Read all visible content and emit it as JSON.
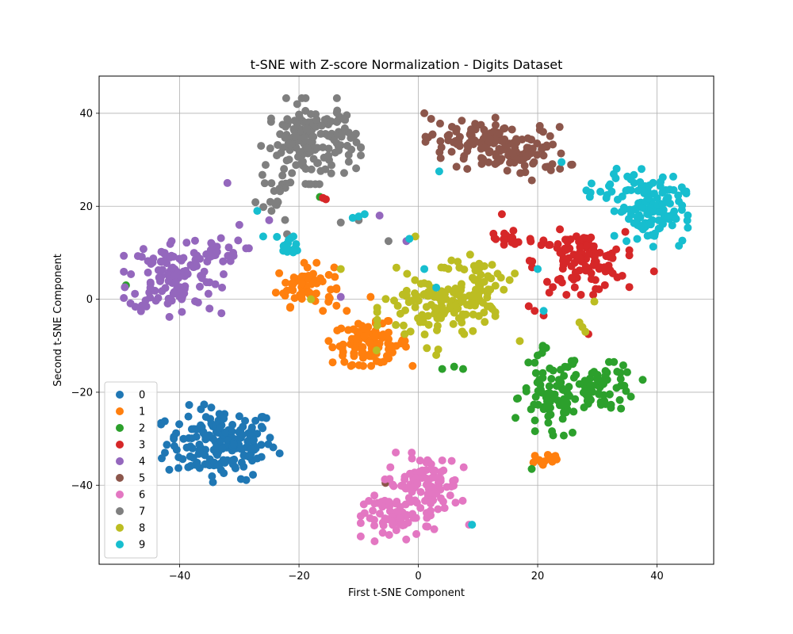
{
  "chart_data": {
    "type": "scatter",
    "title": "t-SNE with Z-score Normalization - Digits Dataset",
    "xlabel": "First t-SNE Component",
    "ylabel": "Second t-SNE Component",
    "xlim": [
      -53.5,
      49.5
    ],
    "ylim": [
      -57,
      48
    ],
    "xticks": [
      -40,
      -20,
      0,
      20,
      40
    ],
    "yticks": [
      -40,
      -20,
      0,
      20,
      40
    ],
    "tick_labels_x": [
      "−40",
      "−20",
      "0",
      "20",
      "40"
    ],
    "tick_labels_y": [
      "−40",
      "−20",
      "0",
      "20",
      "40"
    ],
    "grid": true,
    "legend_position": "lower-left",
    "series": [
      {
        "name": "0",
        "color": "#1f77b4",
        "clusters": [
          {
            "cx": -33,
            "cy": -31,
            "sx": 4.6,
            "sy": 3.8,
            "n": 180
          }
        ],
        "points": []
      },
      {
        "name": "1",
        "color": "#ff7f0e",
        "clusters": [
          {
            "cx": -19,
            "cy": 3,
            "sx": 2.4,
            "sy": 2.2,
            "n": 60
          },
          {
            "cx": -8,
            "cy": -9.5,
            "sx": 3.2,
            "sy": 2.2,
            "n": 95
          },
          {
            "cx": 21.5,
            "cy": -34.5,
            "sx": 1.4,
            "sy": 1.0,
            "n": 14
          }
        ],
        "points": [
          [
            -12,
            -2.5
          ],
          [
            -15,
            0.5
          ],
          [
            -8,
            0.5
          ],
          [
            -16,
            -2.5
          ]
        ]
      },
      {
        "name": "2",
        "color": "#2ca02c",
        "clusters": [
          {
            "cx": 22,
            "cy": -21,
            "sx": 2.6,
            "sy": 5.0,
            "n": 80
          },
          {
            "cx": 31,
            "cy": -19,
            "sx": 3.0,
            "sy": 2.5,
            "n": 70
          }
        ],
        "points": [
          [
            -49,
            3
          ],
          [
            -16.5,
            22
          ],
          [
            4,
            -15
          ],
          [
            6,
            -14.5
          ],
          [
            7.5,
            -15
          ],
          [
            19,
            -36.5
          ]
        ]
      },
      {
        "name": "3",
        "color": "#d62728",
        "clusters": [
          {
            "cx": 27,
            "cy": 8,
            "sx": 3.8,
            "sy": 3.2,
            "n": 110
          },
          {
            "cx": 15,
            "cy": 13,
            "sx": 2.2,
            "sy": 1.3,
            "n": 20
          }
        ],
        "points": [
          [
            -15.5,
            21.5
          ],
          [
            -16,
            21.8
          ],
          [
            14,
            18.3
          ],
          [
            18.5,
            -1.5
          ],
          [
            19.5,
            -2.5
          ],
          [
            28.5,
            -7.5
          ],
          [
            39.5,
            6
          ],
          [
            21,
            -3.5
          ]
        ]
      },
      {
        "name": "4",
        "color": "#9467bd",
        "clusters": [
          {
            "cx": -41,
            "cy": 5,
            "sx": 3.8,
            "sy": 4.0,
            "n": 120
          },
          {
            "cx": -35,
            "cy": 10.5,
            "sx": 3.0,
            "sy": 1.2,
            "n": 20
          }
        ],
        "points": [
          [
            -32,
            25
          ],
          [
            -30,
            16
          ],
          [
            -35,
            -2
          ],
          [
            -33,
            -3
          ],
          [
            -13,
            0.5
          ],
          [
            -6.5,
            18
          ],
          [
            -2,
            12.5
          ],
          [
            -25,
            17
          ]
        ]
      },
      {
        "name": "5",
        "color": "#8c564b",
        "clusters": [
          {
            "cx": 8,
            "cy": 34,
            "sx": 3.5,
            "sy": 2.5,
            "n": 70
          },
          {
            "cx": 17,
            "cy": 31.5,
            "sx": 4.0,
            "sy": 2.7,
            "n": 90
          }
        ],
        "points": [
          [
            1,
            40
          ],
          [
            -5.5,
            -39.5
          ]
        ]
      },
      {
        "name": "6",
        "color": "#e377c2",
        "clusters": [
          {
            "cx": 1,
            "cy": -40,
            "sx": 3.0,
            "sy": 3.2,
            "n": 100
          },
          {
            "cx": -3.5,
            "cy": -47,
            "sx": 2.8,
            "sy": 2.3,
            "n": 60
          }
        ],
        "points": [
          [
            -9,
            -46
          ],
          [
            8.5,
            -48.5
          ]
        ]
      },
      {
        "name": "7",
        "color": "#7f7f7f",
        "clusters": [
          {
            "cx": -18,
            "cy": 34,
            "sx": 3.8,
            "sy": 4.2,
            "n": 170
          },
          {
            "cx": -24,
            "cy": 21,
            "sx": 1.5,
            "sy": 1.8,
            "n": 15
          }
        ],
        "points": [
          [
            -10,
            17
          ],
          [
            -5,
            12.5
          ],
          [
            -22,
            14
          ],
          [
            -13,
            16.5
          ]
        ]
      },
      {
        "name": "8",
        "color": "#bcbd22",
        "clusters": [
          {
            "cx": 3,
            "cy": -2,
            "sx": 4.5,
            "sy": 4.0,
            "n": 110
          },
          {
            "cx": 10,
            "cy": 3,
            "sx": 2.8,
            "sy": 3.0,
            "n": 50
          }
        ],
        "points": [
          [
            27,
            -5
          ],
          [
            27.5,
            -6
          ],
          [
            28,
            -7
          ],
          [
            29.5,
            -0.5
          ],
          [
            -13,
            6.5
          ],
          [
            -18,
            0
          ],
          [
            -7,
            -11
          ],
          [
            -0.5,
            13.5
          ],
          [
            17,
            -9
          ],
          [
            3,
            -12
          ]
        ]
      },
      {
        "name": "9",
        "color": "#17becf",
        "clusters": [
          {
            "cx": 39,
            "cy": 19,
            "sx": 2.8,
            "sy": 3.5,
            "n": 110
          },
          {
            "cx": 33,
            "cy": 24,
            "sx": 2.2,
            "sy": 2.0,
            "n": 25
          },
          {
            "cx": -21.5,
            "cy": 11.5,
            "sx": 1.0,
            "sy": 1.2,
            "n": 15
          }
        ],
        "points": [
          [
            -11,
            17.5
          ],
          [
            -10,
            17.8
          ],
          [
            -9,
            18.3
          ],
          [
            -1.5,
            13
          ],
          [
            1,
            6.5
          ],
          [
            3,
            2.5
          ],
          [
            21,
            -2.5
          ],
          [
            24,
            29.5
          ],
          [
            20,
            6.5
          ],
          [
            -26,
            13.5
          ],
          [
            3.5,
            27.5
          ],
          [
            9,
            -48.5
          ],
          [
            -27,
            19
          ]
        ]
      }
    ]
  }
}
